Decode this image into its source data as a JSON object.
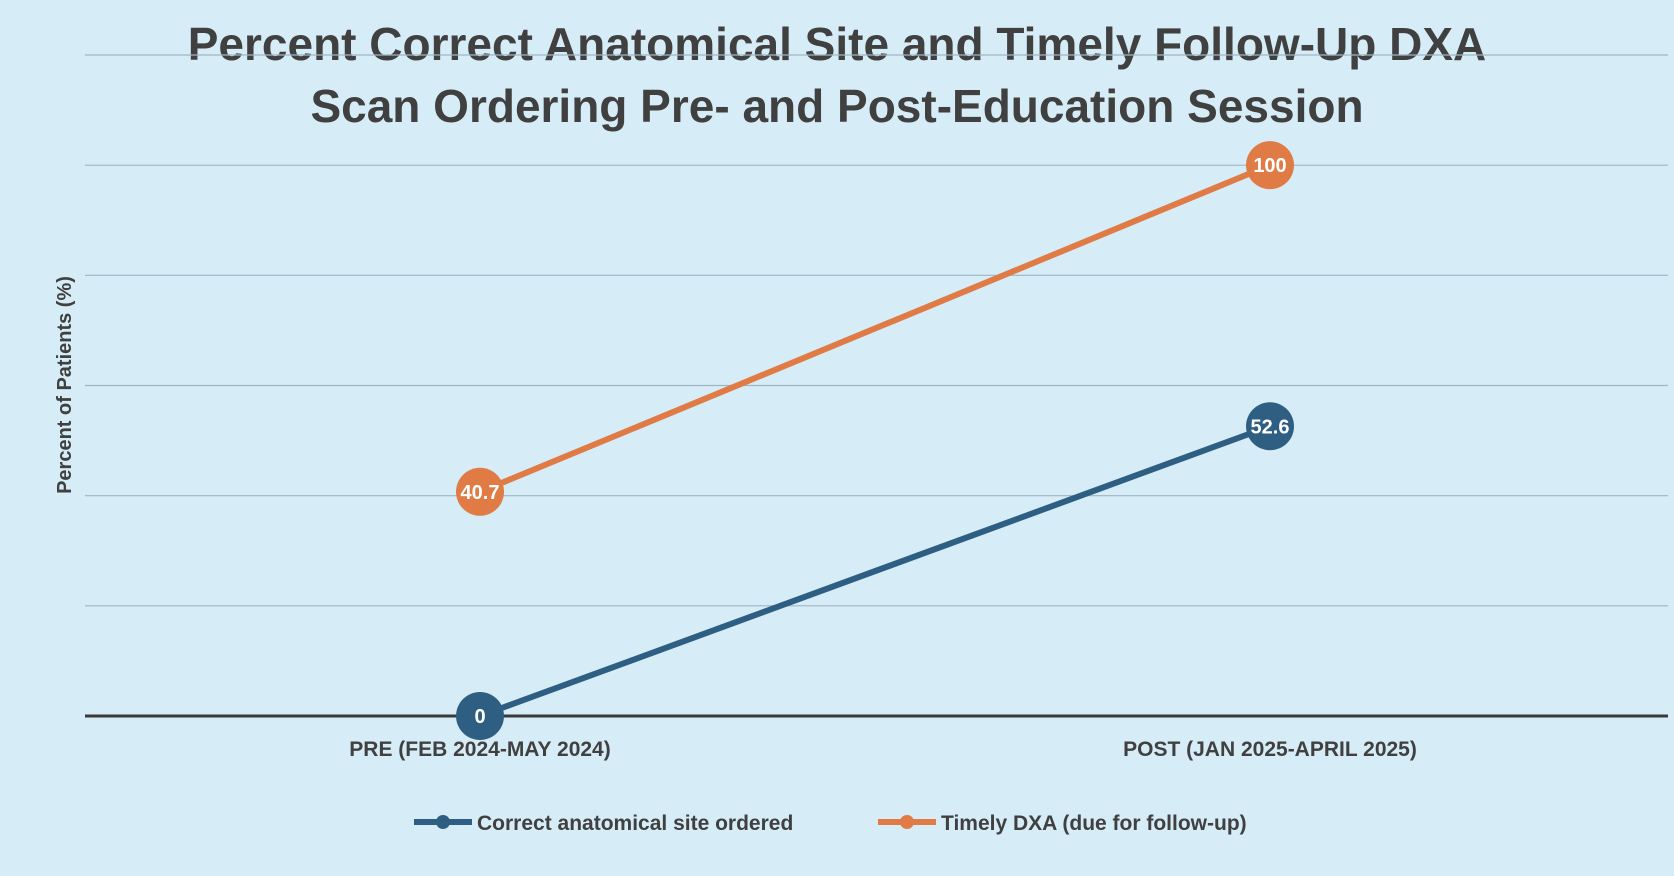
{
  "chart_data": {
    "type": "line",
    "title_lines": [
      "Percent Correct Anatomical Site and Timely Follow-Up DXA",
      "Scan Ordering Pre- and Post-Education Session"
    ],
    "ylabel": "Percent of Patients (%)",
    "xlabel": "",
    "categories": [
      "PRE  (FEB 2024-MAY 2024)",
      "POST (JAN 2025-APRIL 2025)"
    ],
    "ylim": [
      0,
      120
    ],
    "y_gridlines": [
      0,
      20,
      40,
      60,
      80,
      100,
      120
    ],
    "grid": true,
    "legend_position": "bottom",
    "series": [
      {
        "name": "Correct anatomical site ordered",
        "values": [
          0,
          52.6
        ],
        "labels": [
          "0",
          "52.6"
        ],
        "color": "#2e5f82"
      },
      {
        "name": "Timely DXA (due for follow-up)",
        "values": [
          40.7,
          100
        ],
        "labels": [
          "40.7",
          "100"
        ],
        "color": "#e07b45"
      }
    ],
    "colors": {
      "background": "#d6ecf7",
      "gridline": "#9fb6c4",
      "axis": "#3a3a3a",
      "text": "#404040"
    }
  }
}
